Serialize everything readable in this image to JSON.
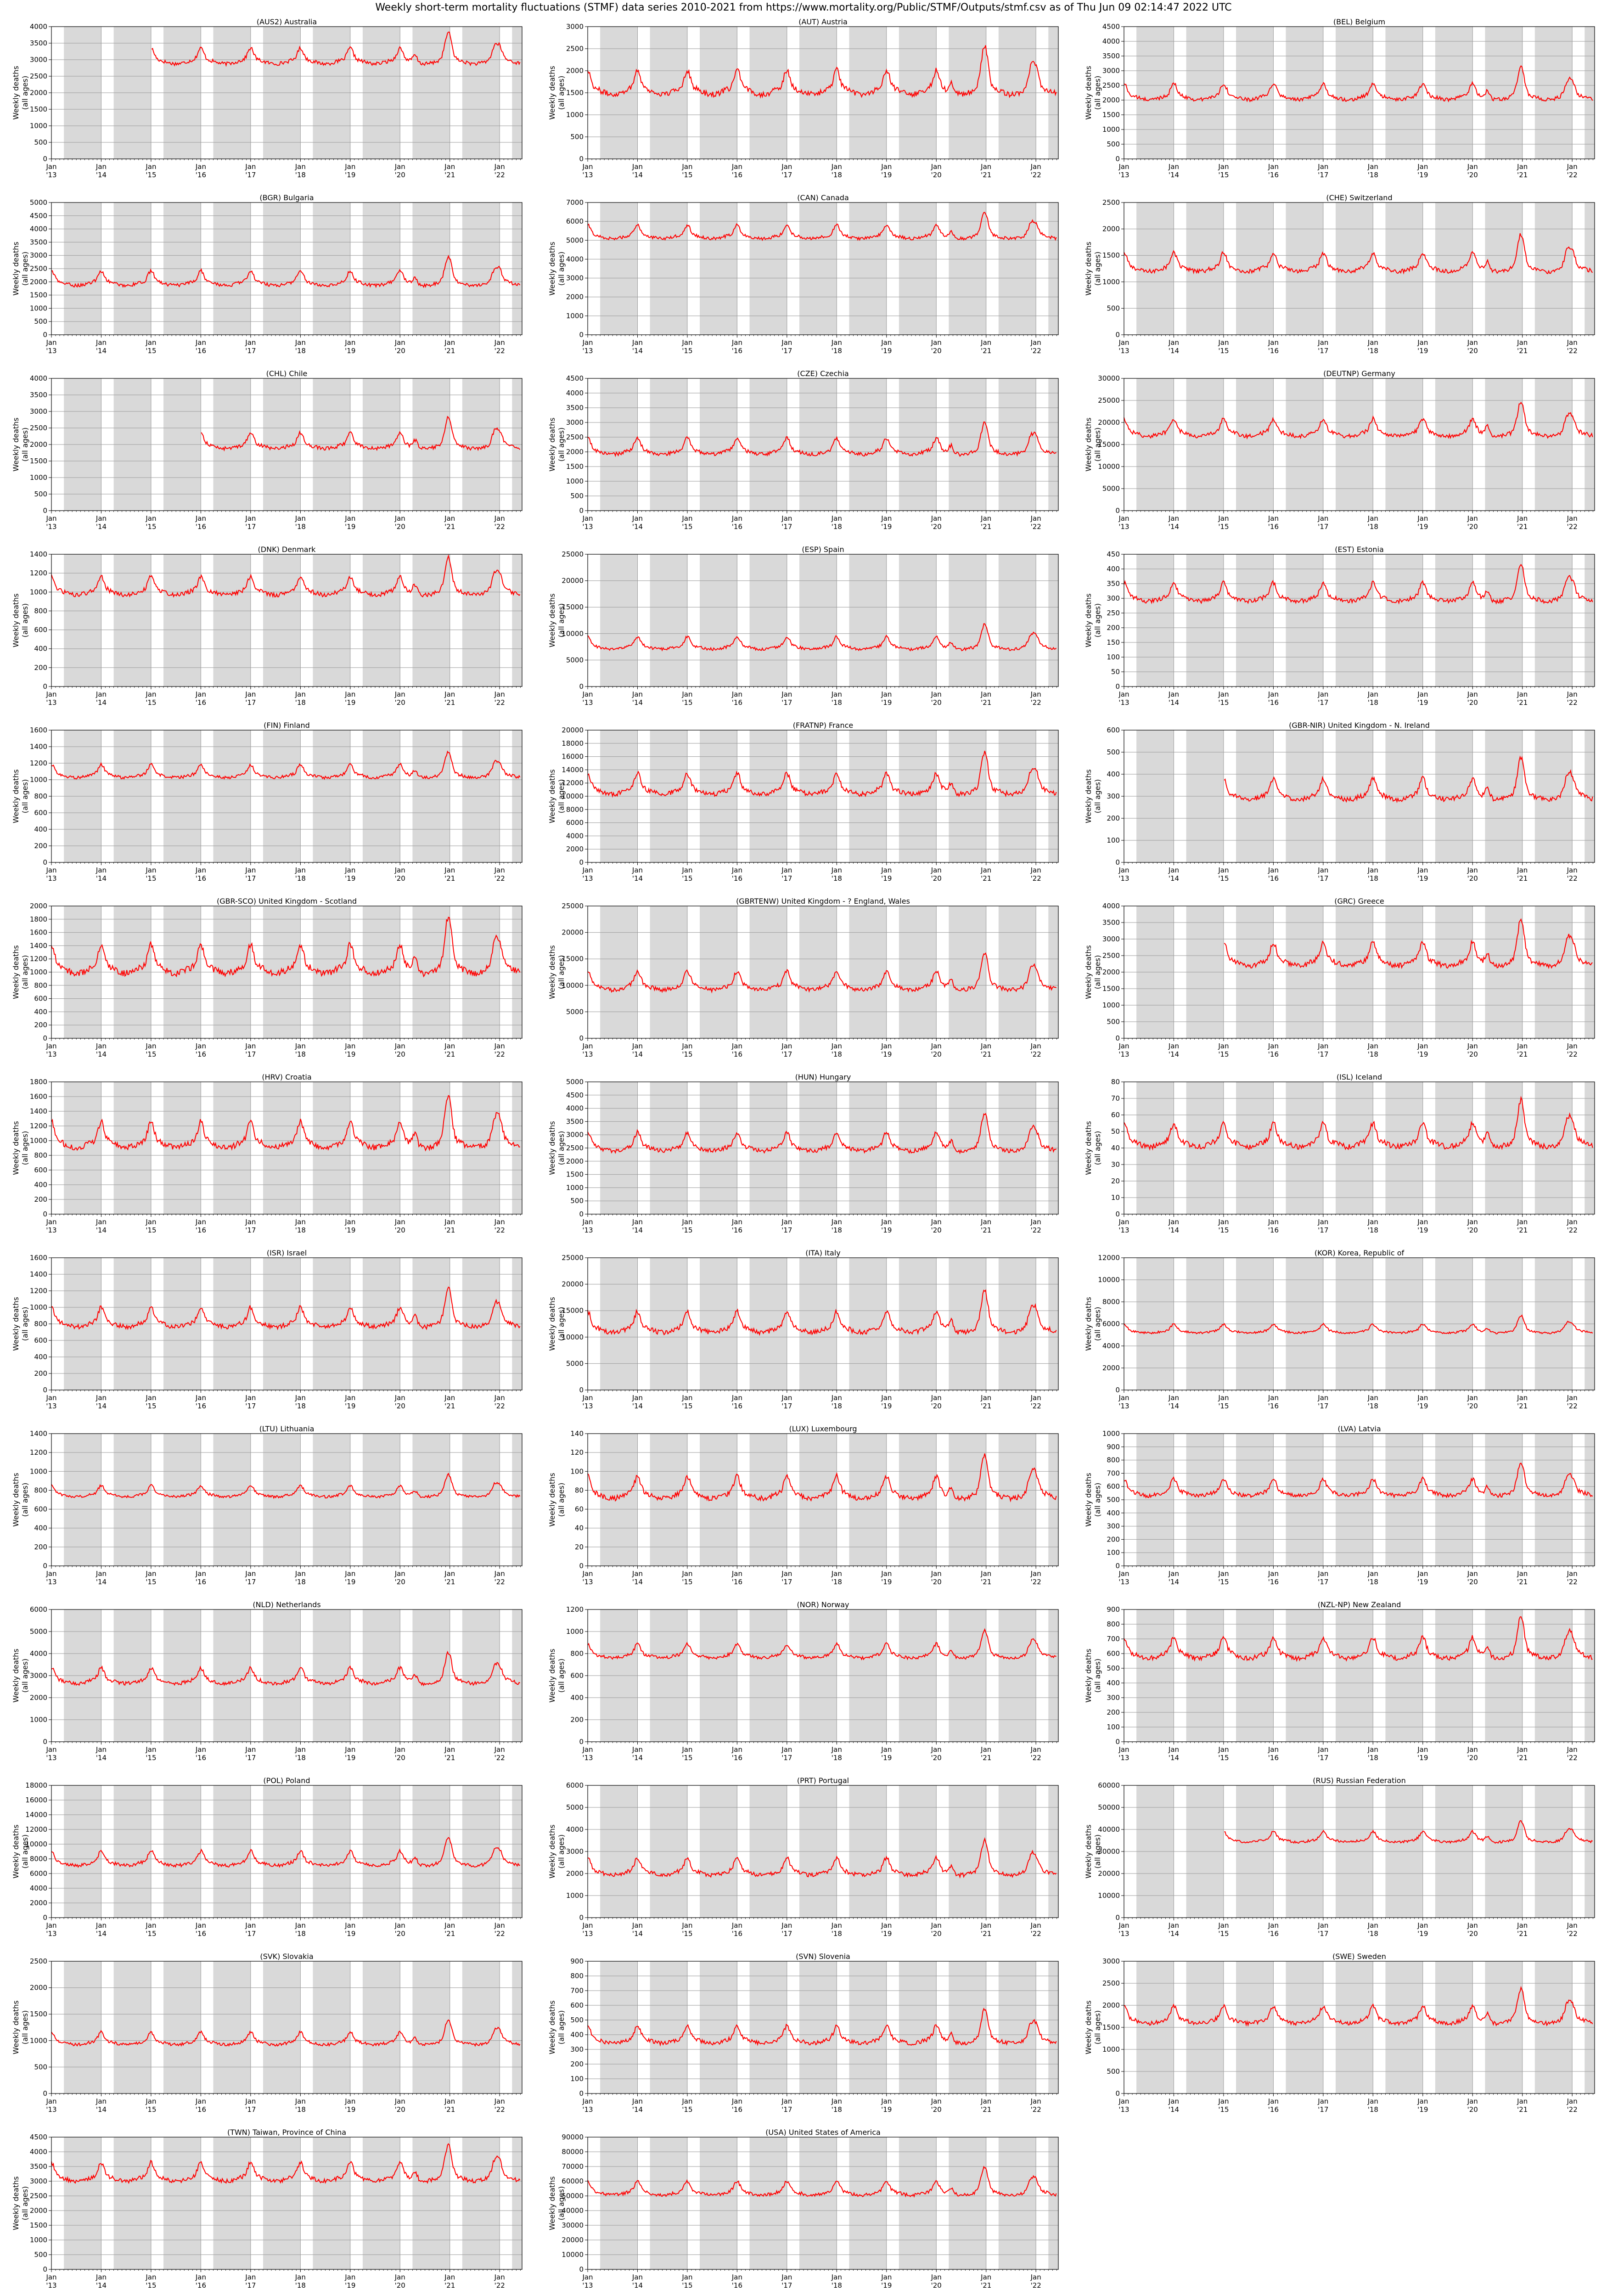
{
  "figure": {
    "title": "Weekly short-term mortality fluctuations (STMF) data series 2010-2021 from https://www.mortality.org/Public/STMF/Outputs/stmf.csv as of Thu Jun 09 02:14:47 2022 UTC",
    "ylabel_line1": "Weekly deaths",
    "ylabel_line2": "(all ages)",
    "x_ticks": [
      "Jan '13",
      "Jan '14",
      "Jan '15",
      "Jan '16",
      "Jan '17",
      "Jan '18",
      "Jan '19",
      "Jan '20",
      "Jan '21",
      "Jan '22"
    ],
    "line_color": "#ff0000",
    "shade_color": "#d9d9d9"
  },
  "chart_data": [
    {
      "type": "line",
      "title": "(AUS2) Australia",
      "start": 2015.0,
      "base": 2950,
      "amp": 600,
      "yticks": [
        0,
        500,
        1000,
        1500,
        2000,
        2500,
        3000,
        3500,
        4000
      ],
      "ylim": [
        0,
        4000
      ],
      "x_range": [
        2013.0,
        2022.45
      ]
    },
    {
      "type": "line",
      "title": "(AUT) Austria",
      "start": 2013.0,
      "base": 1550,
      "amp": 700,
      "yticks": [
        0,
        500,
        1000,
        1500,
        2000,
        2500,
        3000
      ],
      "ylim": [
        0,
        3000
      ],
      "x_range": [
        2013.0,
        2022.45
      ]
    },
    {
      "type": "line",
      "title": "(BEL) Belgium",
      "start": 2013.0,
      "base": 2100,
      "amp": 700,
      "yticks": [
        0,
        500,
        1000,
        1500,
        2000,
        2500,
        3000,
        3500,
        4000,
        4500
      ],
      "ylim": [
        0,
        4500
      ],
      "x_range": [
        2013.0,
        2022.45
      ]
    },
    {
      "type": "line",
      "title": "(BGR) Bulgaria",
      "start": 2013.0,
      "base": 1950,
      "amp": 700,
      "yticks": [
        0,
        500,
        1000,
        1500,
        2000,
        2500,
        3000,
        3500,
        4000,
        4500,
        5000
      ],
      "ylim": [
        0,
        5000
      ],
      "x_range": [
        2013.0,
        2022.45
      ]
    },
    {
      "type": "line",
      "title": "(CAN) Canada",
      "start": 2013.0,
      "base": 5200,
      "amp": 900,
      "yticks": [
        0,
        1000,
        2000,
        3000,
        4000,
        5000,
        6000,
        7000
      ],
      "ylim": [
        0,
        7000
      ],
      "x_range": [
        2013.0,
        2022.45
      ]
    },
    {
      "type": "line",
      "title": "(CHE) Switzerland",
      "start": 2013.0,
      "base": 1250,
      "amp": 450,
      "yticks": [
        0,
        500,
        1000,
        1500,
        2000,
        2500
      ],
      "ylim": [
        0,
        2500
      ],
      "x_range": [
        2013.0,
        2022.45
      ]
    },
    {
      "type": "line",
      "title": "(CHL) Chile",
      "start": 2016.0,
      "base": 1950,
      "amp": 600,
      "yticks": [
        0,
        500,
        1000,
        1500,
        2000,
        2500,
        3000,
        3500,
        4000
      ],
      "ylim": [
        0,
        4000
      ],
      "x_range": [
        2013.0,
        2022.45
      ]
    },
    {
      "type": "line",
      "title": "(CZE) Czechia",
      "start": 2013.0,
      "base": 2000,
      "amp": 700,
      "yticks": [
        0,
        500,
        1000,
        1500,
        2000,
        2500,
        3000,
        3500,
        4000,
        4500
      ],
      "ylim": [
        0,
        4500
      ],
      "x_range": [
        2013.0,
        2022.45
      ]
    },
    {
      "type": "line",
      "title": "(DEUTNP) Germany",
      "start": 2013.0,
      "base": 17500,
      "amp": 5000,
      "yticks": [
        0,
        5000,
        10000,
        15000,
        20000,
        25000,
        30000
      ],
      "ylim": [
        0,
        30000
      ],
      "x_range": [
        2013.0,
        2022.45
      ]
    },
    {
      "type": "line",
      "title": "(DNK) Denmark",
      "start": 2013.0,
      "base": 1000,
      "amp": 250,
      "yticks": [
        0,
        200,
        400,
        600,
        800,
        1000,
        1200,
        1400
      ],
      "ylim": [
        0,
        1400
      ],
      "x_range": [
        2013.0,
        2022.45
      ]
    },
    {
      "type": "line",
      "title": "(ESP) Spain",
      "start": 2013.0,
      "base": 7400,
      "amp": 3000,
      "yticks": [
        0,
        5000,
        10000,
        15000,
        20000,
        25000
      ],
      "ylim": [
        0,
        25000
      ],
      "x_range": [
        2013.0,
        2022.45
      ]
    },
    {
      "type": "line",
      "title": "(EST) Estonia",
      "start": 2013.0,
      "base": 300,
      "amp": 80,
      "yticks": [
        0,
        50,
        100,
        150,
        200,
        250,
        300,
        350,
        400,
        450
      ],
      "ylim": [
        0,
        450
      ],
      "x_range": [
        2013.0,
        2022.45
      ]
    },
    {
      "type": "line",
      "title": "(FIN) Finland",
      "start": 2013.0,
      "base": 1050,
      "amp": 200,
      "yticks": [
        0,
        200,
        400,
        600,
        800,
        1000,
        1200,
        1400,
        1600
      ],
      "ylim": [
        0,
        1600
      ],
      "x_range": [
        2013.0,
        2022.45
      ]
    },
    {
      "type": "line",
      "title": "(FRATNP) France",
      "start": 2013.0,
      "base": 10800,
      "amp": 4000,
      "yticks": [
        0,
        2000,
        4000,
        6000,
        8000,
        10000,
        12000,
        14000,
        16000,
        18000,
        20000
      ],
      "ylim": [
        0,
        20000
      ],
      "x_range": [
        2013.0,
        2022.45
      ]
    },
    {
      "type": "line",
      "title": "(GBR-NIR) United Kingdom - N. Ireland",
      "start": 2015.0,
      "base": 300,
      "amp": 120,
      "yticks": [
        0,
        100,
        200,
        300,
        400,
        500,
        600
      ],
      "ylim": [
        0,
        600
      ],
      "x_range": [
        2013.0,
        2022.45
      ]
    },
    {
      "type": "line",
      "title": "(GBR-SCO) United Kingdom - Scotland",
      "start": 2013.0,
      "base": 1050,
      "amp": 550,
      "yticks": [
        0,
        200,
        400,
        600,
        800,
        1000,
        1200,
        1400,
        1600,
        1800,
        2000
      ],
      "ylim": [
        0,
        2000
      ],
      "x_range": [
        2013.0,
        2022.45
      ]
    },
    {
      "type": "line",
      "title": "(GBRTENW) United Kingdom - ? England, Wales",
      "start": 2013.0,
      "base": 9700,
      "amp": 4500,
      "yticks": [
        0,
        5000,
        10000,
        15000,
        20000,
        25000
      ],
      "ylim": [
        0,
        25000
      ],
      "x_range": [
        2013.0,
        2022.45
      ]
    },
    {
      "type": "line",
      "title": "(GRC) Greece",
      "start": 2015.0,
      "base": 2300,
      "amp": 900,
      "yticks": [
        0,
        500,
        1000,
        1500,
        2000,
        2500,
        3000,
        3500,
        4000
      ],
      "ylim": [
        0,
        4000
      ],
      "x_range": [
        2013.0,
        2022.45
      ]
    },
    {
      "type": "line",
      "title": "(HRV) Croatia",
      "start": 2013.0,
      "base": 960,
      "amp": 450,
      "yticks": [
        0,
        200,
        400,
        600,
        800,
        1000,
        1200,
        1400,
        1600,
        1800
      ],
      "ylim": [
        0,
        1800
      ],
      "x_range": [
        2013.0,
        2022.45
      ]
    },
    {
      "type": "line",
      "title": "(HUN) Hungary",
      "start": 2013.0,
      "base": 2500,
      "amp": 900,
      "yticks": [
        0,
        500,
        1000,
        1500,
        2000,
        2500,
        3000,
        3500,
        4000,
        4500,
        5000
      ],
      "ylim": [
        0,
        5000
      ],
      "x_range": [
        2013.0,
        2022.45
      ]
    },
    {
      "type": "line",
      "title": "(ISL) Iceland",
      "start": 2013.0,
      "base": 43,
      "amp": 18,
      "yticks": [
        0,
        10,
        20,
        30,
        40,
        50,
        60,
        70,
        80
      ],
      "ylim": [
        0,
        80
      ],
      "x_range": [
        2013.0,
        2022.45
      ]
    },
    {
      "type": "line",
      "title": "(ISR) Israel",
      "start": 2013.0,
      "base": 800,
      "amp": 300,
      "yticks": [
        0,
        200,
        400,
        600,
        800,
        1000,
        1200,
        1400,
        1600
      ],
      "ylim": [
        0,
        1600
      ],
      "x_range": [
        2013.0,
        2022.45
      ]
    },
    {
      "type": "line",
      "title": "(ITA) Italy",
      "start": 2013.0,
      "base": 11500,
      "amp": 5000,
      "yticks": [
        0,
        5000,
        10000,
        15000,
        20000,
        25000
      ],
      "ylim": [
        0,
        25000
      ],
      "x_range": [
        2013.0,
        2022.45
      ]
    },
    {
      "type": "line",
      "title": "(KOR) Korea, Republic of",
      "start": 2013.0,
      "base": 5300,
      "amp": 1000,
      "yticks": [
        0,
        2000,
        4000,
        6000,
        8000,
        10000,
        12000
      ],
      "ylim": [
        0,
        12000
      ],
      "x_range": [
        2013.0,
        2022.45
      ]
    },
    {
      "type": "line",
      "title": "(LTU) Lithuania",
      "start": 2013.0,
      "base": 750,
      "amp": 150,
      "yticks": [
        0,
        200,
        400,
        600,
        800,
        1000,
        1200,
        1400
      ],
      "ylim": [
        0,
        1400
      ],
      "x_range": [
        2013.0,
        2022.45
      ]
    },
    {
      "type": "line",
      "title": "(LUX) Luxembourg",
      "start": 2013.0,
      "base": 75,
      "amp": 30,
      "yticks": [
        0,
        20,
        40,
        60,
        80,
        100,
        120,
        140
      ],
      "ylim": [
        0,
        140
      ],
      "x_range": [
        2013.0,
        2022.45
      ]
    },
    {
      "type": "line",
      "title": "(LVA) Latvia",
      "start": 2013.0,
      "base": 550,
      "amp": 160,
      "yticks": [
        0,
        100,
        200,
        300,
        400,
        500,
        600,
        700,
        800,
        900,
        1000
      ],
      "ylim": [
        0,
        1000
      ],
      "x_range": [
        2013.0,
        2022.45
      ]
    },
    {
      "type": "line",
      "title": "(NLD) Netherlands",
      "start": 2013.0,
      "base": 2750,
      "amp": 900,
      "yticks": [
        0,
        1000,
        2000,
        3000,
        4000,
        5000,
        6000
      ],
      "ylim": [
        0,
        6000
      ],
      "x_range": [
        2013.0,
        2022.45
      ]
    },
    {
      "type": "line",
      "title": "(NOR) Norway",
      "start": 2013.0,
      "base": 780,
      "amp": 160,
      "yticks": [
        0,
        200,
        400,
        600,
        800,
        1000,
        1200
      ],
      "ylim": [
        0,
        1200
      ],
      "x_range": [
        2013.0,
        2022.45
      ]
    },
    {
      "type": "line",
      "title": "(NZL-NP) New Zealand",
      "start": 2013.0,
      "base": 590,
      "amp": 180,
      "yticks": [
        0,
        100,
        200,
        300,
        400,
        500,
        600,
        700,
        800,
        900
      ],
      "ylim": [
        0,
        900
      ],
      "x_range": [
        2013.0,
        2022.45
      ]
    },
    {
      "type": "line",
      "title": "(POL) Poland",
      "start": 2013.0,
      "base": 7400,
      "amp": 2500,
      "yticks": [
        0,
        2000,
        4000,
        6000,
        8000,
        10000,
        12000,
        14000,
        16000,
        18000
      ],
      "ylim": [
        0,
        18000
      ],
      "x_range": [
        2013.0,
        2022.45
      ]
    },
    {
      "type": "line",
      "title": "(PRT) Portugal",
      "start": 2013.0,
      "base": 2050,
      "amp": 1000,
      "yticks": [
        0,
        1000,
        2000,
        3000,
        4000,
        5000,
        6000
      ],
      "ylim": [
        0,
        6000
      ],
      "x_range": [
        2013.0,
        2022.45
      ]
    },
    {
      "type": "line",
      "title": "(RUS) Russian Federation",
      "start": 2015.0,
      "base": 35000,
      "amp": 6000,
      "yticks": [
        0,
        10000,
        20000,
        30000,
        40000,
        50000,
        60000
      ],
      "ylim": [
        0,
        60000
      ],
      "x_range": [
        2013.0,
        2022.45
      ]
    },
    {
      "type": "line",
      "title": "(SVK) Slovakia",
      "start": 2013.0,
      "base": 960,
      "amp": 300,
      "yticks": [
        0,
        500,
        1000,
        1500,
        2000,
        2500
      ],
      "ylim": [
        0,
        2500
      ],
      "x_range": [
        2013.0,
        2022.45
      ]
    },
    {
      "type": "line",
      "title": "(SVN) Slovenia",
      "start": 2013.0,
      "base": 360,
      "amp": 150,
      "yticks": [
        0,
        100,
        200,
        300,
        400,
        500,
        600,
        700,
        800,
        900
      ],
      "ylim": [
        0,
        900
      ],
      "x_range": [
        2013.0,
        2022.45
      ]
    },
    {
      "type": "line",
      "title": "(SWE) Sweden",
      "start": 2013.0,
      "base": 1650,
      "amp": 500,
      "yticks": [
        0,
        500,
        1000,
        1500,
        2000,
        2500,
        3000
      ],
      "ylim": [
        0,
        3000
      ],
      "x_range": [
        2013.0,
        2022.45
      ]
    },
    {
      "type": "line",
      "title": "(TWN) Taiwan, Province of China",
      "start": 2013.0,
      "base": 3100,
      "amp": 800,
      "yticks": [
        0,
        500,
        1000,
        1500,
        2000,
        2500,
        3000,
        3500,
        4000,
        4500
      ],
      "ylim": [
        0,
        4500
      ],
      "x_range": [
        2013.0,
        2022.45
      ]
    },
    {
      "type": "line",
      "title": "(USA) United States of America",
      "start": 2013.0,
      "base": 52000,
      "amp": 12000,
      "yticks": [
        0,
        10000,
        20000,
        30000,
        40000,
        50000,
        60000,
        70000,
        80000,
        90000
      ],
      "ylim": [
        0,
        90000
      ],
      "x_range": [
        2013.0,
        2022.45
      ]
    }
  ]
}
